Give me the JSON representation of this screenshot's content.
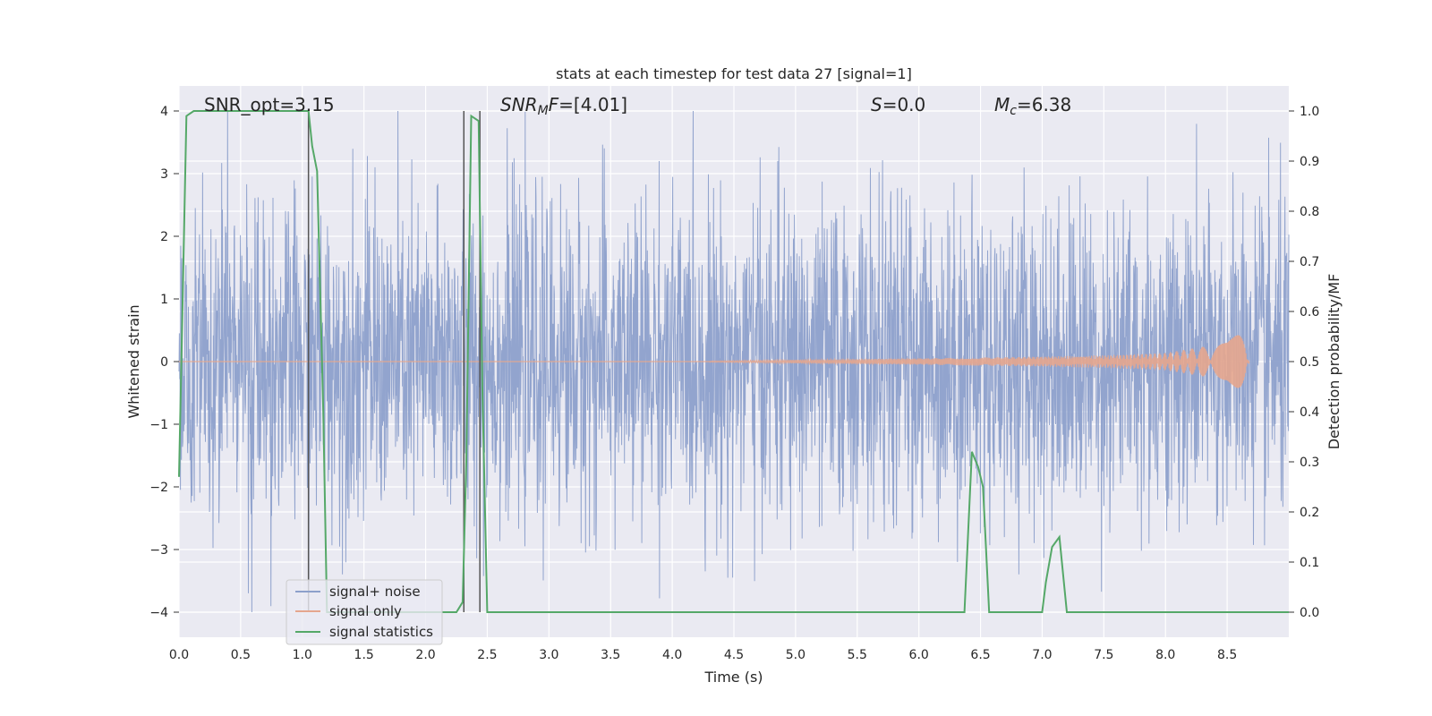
{
  "chart_data": {
    "type": "line",
    "title": "stats at each timestep for test data 27 [signal=1]",
    "xlabel": "Time (s)",
    "ylabel_left": "Whitened strain",
    "ylabel_right": "Detection probability/MF",
    "xlim": [
      0.0,
      9.0
    ],
    "ylim_left": [
      -4.4,
      4.4
    ],
    "ylim_right": [
      -0.05,
      1.05
    ],
    "x_ticks": [
      "0.0",
      "0.5",
      "1.0",
      "1.5",
      "2.0",
      "2.5",
      "3.0",
      "3.5",
      "4.0",
      "4.5",
      "5.0",
      "5.5",
      "6.0",
      "6.5",
      "7.0",
      "7.5",
      "8.0",
      "8.5"
    ],
    "y_ticks_left": [
      "4",
      "3",
      "2",
      "1",
      "0",
      "−1",
      "−2",
      "−3",
      "−4"
    ],
    "y_ticks_right": [
      "1.0",
      "0.9",
      "0.8",
      "0.7",
      "0.6",
      "0.5",
      "0.4",
      "0.3",
      "0.2",
      "0.1",
      "0.0"
    ],
    "grid": true,
    "legend_position": "lower-left",
    "annotations": {
      "snr_opt": "SNR_opt=3.15",
      "snr_mf": "SNR",
      "snr_mf_sub": "M",
      "snr_mf_f": "F",
      "snr_mf_value": "=[4.01]",
      "s_label": "S",
      "s_value": "=0.0",
      "mc_label": "M",
      "mc_sub": "c",
      "mc_value": "=6.38"
    },
    "vertical_lines_x": [
      1.05,
      2.31,
      2.44
    ],
    "series": [
      {
        "name": "signal+ noise",
        "color": "#8da0cb",
        "kind": "noise",
        "amplitude_std": 1.25,
        "x_range": [
          0.0,
          9.0
        ]
      },
      {
        "name": "signal only",
        "color": "#e5a68e",
        "kind": "chirp",
        "envelope": [
          [
            4.3,
            0.01
          ],
          [
            6.0,
            0.05
          ],
          [
            7.0,
            0.08
          ],
          [
            7.5,
            0.1
          ],
          [
            8.0,
            0.14
          ],
          [
            8.5,
            0.3
          ],
          [
            8.65,
            0.55
          ],
          [
            8.68,
            0.0
          ]
        ]
      },
      {
        "name": "signal statistics",
        "color": "#55a868",
        "axis": "right",
        "x": [
          0.0,
          0.06,
          0.12,
          0.2,
          0.4,
          0.8,
          1.0,
          1.05,
          1.08,
          1.12,
          1.17,
          1.2,
          1.25,
          1.6,
          2.0,
          2.25,
          2.3,
          2.33,
          2.37,
          2.43,
          2.46,
          2.5,
          2.57,
          3.0,
          4.0,
          5.0,
          6.0,
          6.37,
          6.43,
          6.48,
          6.52,
          6.57,
          6.62,
          7.0,
          7.03,
          7.08,
          7.14,
          7.2,
          7.27,
          7.35,
          7.45,
          8.0,
          9.0
        ],
        "y": [
          0.27,
          0.99,
          1.0,
          1.0,
          1.0,
          1.0,
          1.0,
          1.0,
          0.93,
          0.88,
          0.4,
          0.0,
          0.0,
          0.0,
          0.0,
          0.0,
          0.02,
          0.3,
          0.99,
          0.98,
          0.45,
          0.0,
          0.0,
          0.0,
          0.0,
          0.0,
          0.0,
          0.0,
          0.32,
          0.29,
          0.25,
          0.0,
          0.0,
          0.0,
          0.06,
          0.13,
          0.15,
          0.0,
          0.0,
          0.0,
          0.0,
          0.0,
          0.0
        ]
      }
    ]
  }
}
